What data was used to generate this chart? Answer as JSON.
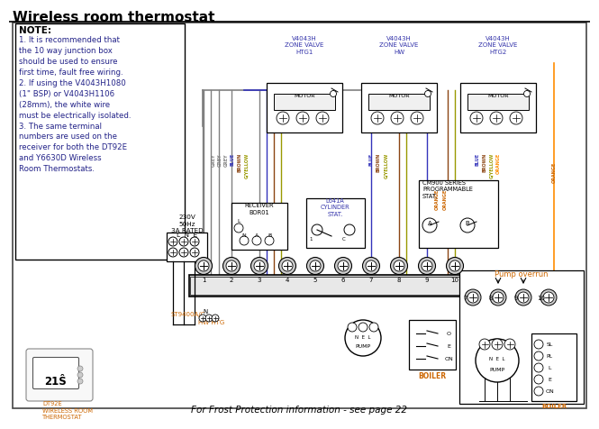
{
  "title": "Wireless room thermostat",
  "bg_color": "#ffffff",
  "title_fontsize": 11,
  "note_title": "NOTE:",
  "note_lines": [
    "1. It is recommended that",
    "the 10 way junction box",
    "should be used to ensure",
    "first time, fault free wiring.",
    "2. If using the V4043H1080",
    "(1\" BSP) or V4043H1106",
    "(28mm), the white wire",
    "must be electrically isolated.",
    "3. The same terminal",
    "numbers are used on the",
    "receiver for both the DT92E",
    "and Y6630D Wireless",
    "Room Thermostats."
  ],
  "footer_text": "For Frost Protection information - see page 22",
  "pump_overrun_label": "Pump overrun",
  "st9400_label": "ST9400A/C",
  "hwhtg_label": "HW HTG",
  "boiler_label": "BOILER",
  "boiler_label2": "BOILER",
  "dt92e_label": "DT92E\nWIRELESS ROOM\nTHERMOSTAT",
  "receiver_label": "RECEIVER\nBOR01",
  "l641a_label": "L641A\nCYLINDER\nSTAT.",
  "cm900_label": "CM900 SERIES\nPROGRAMMABLE\nSTAT.",
  "power_label": "230V\n50Hz\n3A RATED",
  "terminal_numbers": [
    "1",
    "2",
    "3",
    "4",
    "5",
    "6",
    "7",
    "8",
    "9",
    "10"
  ],
  "grey": "#808080",
  "blue_col": "#3333bb",
  "brown_col": "#8B4513",
  "gyellow_col": "#999900",
  "orange_col": "#FF8C00",
  "label_blue": "#3333aa",
  "label_orange": "#cc6600"
}
